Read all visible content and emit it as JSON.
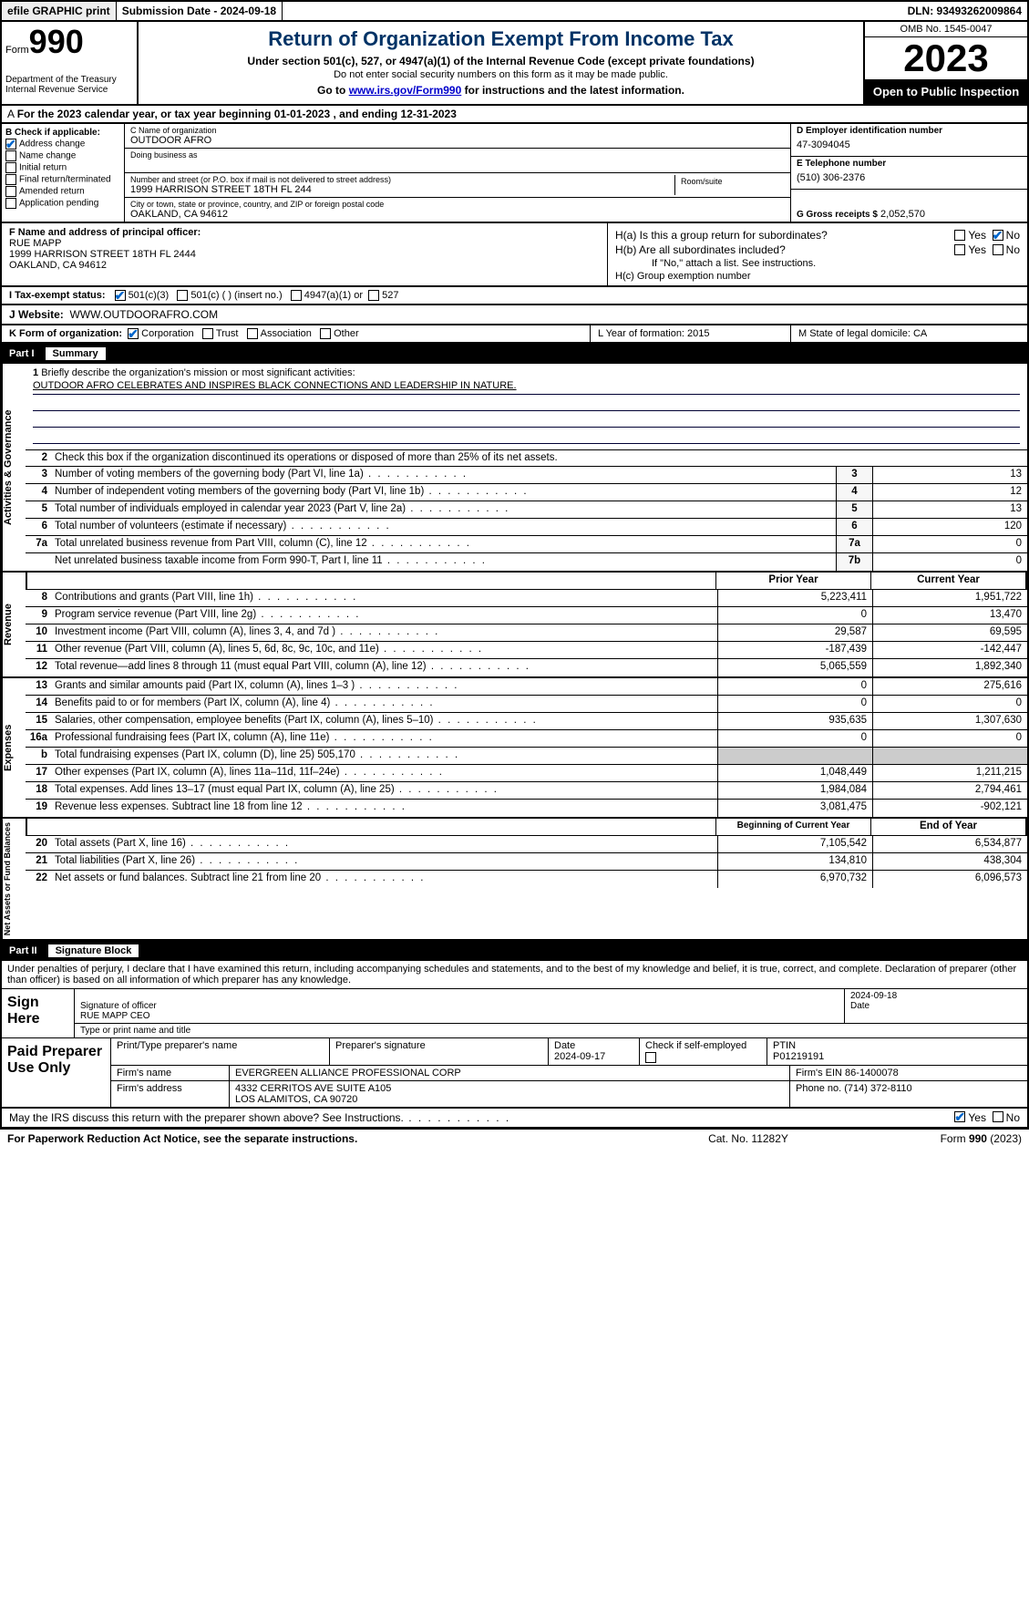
{
  "topbar": {
    "efile": "efile GRAPHIC print",
    "submission": "Submission Date - 2024-09-18",
    "dln": "DLN: 93493262009864"
  },
  "header": {
    "form_label": "Form",
    "form_number": "990",
    "dept": "Department of the Treasury Internal Revenue Service",
    "title": "Return of Organization Exempt From Income Tax",
    "sub1": "Under section 501(c), 527, or 4947(a)(1) of the Internal Revenue Code (except private foundations)",
    "sub2": "Do not enter social security numbers on this form as it may be made public.",
    "sub3_a": "Go to ",
    "sub3_link": "www.irs.gov/Form990",
    "sub3_b": " for instructions and the latest information.",
    "omb": "OMB No. 1545-0047",
    "year": "2023",
    "open": "Open to Public Inspection"
  },
  "period": "For the 2023 calendar year, or tax year beginning 01-01-2023   , and ending 12-31-2023",
  "boxB": {
    "label": "B Check if applicable:",
    "addr_change": "Address change",
    "name_change": "Name change",
    "initial": "Initial return",
    "final": "Final return/terminated",
    "amended": "Amended return",
    "app_pending": "Application pending"
  },
  "boxC": {
    "name_lbl": "C Name of organization",
    "name": "OUTDOOR AFRO",
    "dba_lbl": "Doing business as",
    "addr_lbl": "Number and street (or P.O. box if mail is not delivered to street address)",
    "addr": "1999 HARRISON STREET 18TH FL 244",
    "room_lbl": "Room/suite",
    "city_lbl": "City or town, state or province, country, and ZIP or foreign postal code",
    "city": "OAKLAND, CA  94612"
  },
  "boxD": {
    "lbl": "D Employer identification number",
    "val": "47-3094045"
  },
  "boxE": {
    "lbl": "E Telephone number",
    "val": "(510) 306-2376"
  },
  "boxG": {
    "lbl": "G Gross receipts $",
    "val": "2,052,570"
  },
  "boxF": {
    "lbl": "F  Name and address of principal officer:",
    "name": "RUE MAPP",
    "addr1": "1999 HARRISON STREET 18TH FL 2444",
    "addr2": "OAKLAND, CA  94612"
  },
  "boxH": {
    "a": "H(a)  Is this a group return for subordinates?",
    "b": "H(b)  Are all subordinates included?",
    "note": "If \"No,\" attach a list. See instructions.",
    "c": "H(c)  Group exemption number"
  },
  "yn": {
    "yes": "Yes",
    "no": "No"
  },
  "boxI": {
    "lbl": "I   Tax-exempt status:",
    "o1": "501(c)(3)",
    "o2": "501(c) (  ) (insert no.)",
    "o3": "4947(a)(1) or",
    "o4": "527"
  },
  "boxJ": {
    "lbl": "J   Website:",
    "val": "WWW.OUTDOORAFRO.COM"
  },
  "boxK": {
    "lbl": "K Form of organization:",
    "o1": "Corporation",
    "o2": "Trust",
    "o3": "Association",
    "o4": "Other"
  },
  "boxL": "L Year of formation: 2015",
  "boxM": "M State of legal domicile: CA",
  "part1": {
    "num": "Part I",
    "title": "Summary"
  },
  "vtabs": {
    "ag": "Activities & Governance",
    "rev": "Revenue",
    "exp": "Expenses",
    "na": "Net Assets or Fund Balances"
  },
  "line1": {
    "num": "1",
    "lbl": "Briefly describe the organization's mission or most significant activities:",
    "val": "OUTDOOR AFRO CELEBRATES AND INSPIRES BLACK CONNECTIONS AND LEADERSHIP IN NATURE."
  },
  "line2": {
    "num": "2",
    "lbl": "Check this box         if the organization discontinued its operations or disposed of more than 25% of its net assets."
  },
  "lines_ag": [
    {
      "n": "3",
      "d": "Number of voting members of the governing body (Part VI, line 1a)",
      "b": "3",
      "v": "13"
    },
    {
      "n": "4",
      "d": "Number of independent voting members of the governing body (Part VI, line 1b)",
      "b": "4",
      "v": "12"
    },
    {
      "n": "5",
      "d": "Total number of individuals employed in calendar year 2023 (Part V, line 2a)",
      "b": "5",
      "v": "13"
    },
    {
      "n": "6",
      "d": "Total number of volunteers (estimate if necessary)",
      "b": "6",
      "v": "120"
    },
    {
      "n": "7a",
      "d": "Total unrelated business revenue from Part VIII, column (C), line 12",
      "b": "7a",
      "v": "0"
    },
    {
      "n": "",
      "d": "Net unrelated business taxable income from Form 990-T, Part I, line 11",
      "b": "7b",
      "v": "0"
    }
  ],
  "colhdr": {
    "py": "Prior Year",
    "cy": "Current Year"
  },
  "lines_rev": [
    {
      "n": "8",
      "d": "Contributions and grants (Part VIII, line 1h)",
      "p": "5,223,411",
      "c": "1,951,722"
    },
    {
      "n": "9",
      "d": "Program service revenue (Part VIII, line 2g)",
      "p": "0",
      "c": "13,470"
    },
    {
      "n": "10",
      "d": "Investment income (Part VIII, column (A), lines 3, 4, and 7d )",
      "p": "29,587",
      "c": "69,595"
    },
    {
      "n": "11",
      "d": "Other revenue (Part VIII, column (A), lines 5, 6d, 8c, 9c, 10c, and 11e)",
      "p": "-187,439",
      "c": "-142,447"
    },
    {
      "n": "12",
      "d": "Total revenue—add lines 8 through 11 (must equal Part VIII, column (A), line 12)",
      "p": "5,065,559",
      "c": "1,892,340"
    }
  ],
  "lines_exp": [
    {
      "n": "13",
      "d": "Grants and similar amounts paid (Part IX, column (A), lines 1–3 )",
      "p": "0",
      "c": "275,616"
    },
    {
      "n": "14",
      "d": "Benefits paid to or for members (Part IX, column (A), line 4)",
      "p": "0",
      "c": "0"
    },
    {
      "n": "15",
      "d": "Salaries, other compensation, employee benefits (Part IX, column (A), lines 5–10)",
      "p": "935,635",
      "c": "1,307,630"
    },
    {
      "n": "16a",
      "d": "Professional fundraising fees (Part IX, column (A), line 11e)",
      "p": "0",
      "c": "0"
    },
    {
      "n": "b",
      "d": "Total fundraising expenses (Part IX, column (D), line 25) 505,170",
      "p": "",
      "c": "",
      "gray": true
    },
    {
      "n": "17",
      "d": "Other expenses (Part IX, column (A), lines 11a–11d, 11f–24e)",
      "p": "1,048,449",
      "c": "1,211,215"
    },
    {
      "n": "18",
      "d": "Total expenses. Add lines 13–17 (must equal Part IX, column (A), line 25)",
      "p": "1,984,084",
      "c": "2,794,461"
    },
    {
      "n": "19",
      "d": "Revenue less expenses. Subtract line 18 from line 12",
      "p": "3,081,475",
      "c": "-902,121"
    }
  ],
  "colhdr2": {
    "by": "Beginning of Current Year",
    "ey": "End of Year"
  },
  "lines_na": [
    {
      "n": "20",
      "d": "Total assets (Part X, line 16)",
      "p": "7,105,542",
      "c": "6,534,877"
    },
    {
      "n": "21",
      "d": "Total liabilities (Part X, line 26)",
      "p": "134,810",
      "c": "438,304"
    },
    {
      "n": "22",
      "d": "Net assets or fund balances. Subtract line 21 from line 20",
      "p": "6,970,732",
      "c": "6,096,573"
    }
  ],
  "part2": {
    "num": "Part II",
    "title": "Signature Block"
  },
  "declaration": "Under penalties of perjury, I declare that I have examined this return, including accompanying schedules and statements, and to the best of my knowledge and belief, it is true, correct, and complete. Declaration of preparer (other than officer) is based on all information of which preparer has any knowledge.",
  "sign": {
    "here": "Sign Here",
    "sig_lbl": "Signature of officer",
    "name": "RUE MAPP CEO",
    "name_lbl": "Type or print name and title",
    "date": "2024-09-18",
    "date_lbl": "Date"
  },
  "prep": {
    "title": "Paid Preparer Use Only",
    "name_lbl": "Print/Type preparer's name",
    "sig_lbl": "Preparer's signature",
    "date_lbl": "Date",
    "date": "2024-09-17",
    "self_lbl": "Check         if self-employed",
    "ptin_lbl": "PTIN",
    "ptin": "P01219191",
    "firm_lbl": "Firm's name",
    "firm": "EVERGREEN ALLIANCE PROFESSIONAL CORP",
    "ein_lbl": "Firm's EIN",
    "ein": "86-1400078",
    "addr_lbl": "Firm's address",
    "addr1": "4332 CERRITOS AVE SUITE A105",
    "addr2": "LOS ALAMITOS, CA  90720",
    "phone_lbl": "Phone no.",
    "phone": "(714) 372-8110"
  },
  "discuss": "May the IRS discuss this return with the preparer shown above? See Instructions.",
  "footer": {
    "l": "For Paperwork Reduction Act Notice, see the separate instructions.",
    "c": "Cat. No. 11282Y",
    "r": "Form 990 (2023)"
  }
}
